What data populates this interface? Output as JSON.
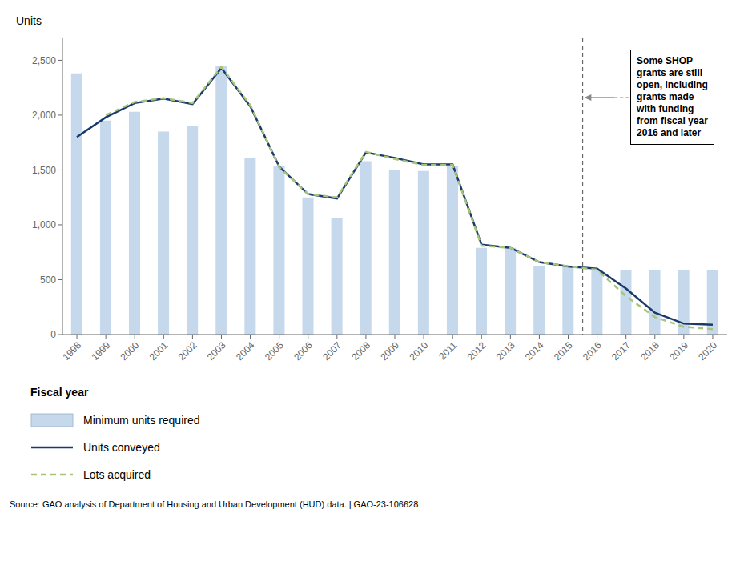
{
  "chart_data": {
    "type": "bar",
    "categories": [
      1998,
      1999,
      2000,
      2001,
      2002,
      2003,
      2004,
      2005,
      2006,
      2007,
      2008,
      2009,
      2010,
      2011,
      2012,
      2013,
      2014,
      2015,
      2016,
      2017,
      2018,
      2019,
      2020
    ],
    "series": [
      {
        "name": "Minimum units required",
        "type": "bar",
        "color": "#c5d8ec",
        "values": [
          2380,
          1950,
          2030,
          1850,
          1900,
          2450,
          1610,
          1540,
          1250,
          1060,
          1580,
          1500,
          1490,
          1540,
          790,
          790,
          620,
          620,
          590,
          590,
          590,
          590,
          590
        ]
      },
      {
        "name": "Units conveyed",
        "type": "line",
        "color": "#1a3a6b",
        "line_style": "solid",
        "values": [
          1800,
          1980,
          2110,
          2150,
          2100,
          2430,
          2080,
          1530,
          1280,
          1240,
          1660,
          1610,
          1550,
          1550,
          820,
          790,
          660,
          620,
          600,
          420,
          200,
          100,
          90
        ]
      },
      {
        "name": "Lots acquired",
        "type": "line",
        "color": "#a8c47a",
        "line_style": "dashed",
        "values": [
          null,
          2000,
          2120,
          2155,
          2110,
          2440,
          2090,
          1525,
          1280,
          1250,
          1665,
          1600,
          1545,
          1545,
          810,
          790,
          660,
          622,
          590,
          350,
          160,
          70,
          50
        ]
      }
    ],
    "xlabel": "Fiscal year",
    "ylabel": "Units",
    "ylim": [
      0,
      2700
    ],
    "yticks": [
      0,
      500,
      {
        "value": 1000,
        "label": "1,000"
      },
      {
        "value": 1500,
        "label": "1,500"
      },
      {
        "value": 2000,
        "label": "2,000"
      },
      {
        "value": 2500,
        "label": "2,500"
      }
    ],
    "grid": false,
    "legend": "bottom",
    "annotations": [
      {
        "text": "Some SHOP\ngrants are still\nopen, including\ngrants made\nwith funding\nfrom fiscal year\n2016 and later",
        "x": 2015.5
      }
    ],
    "source": "Source: GAO analysis of Department of Housing and Urban Development (HUD) data.  |  GAO-23-106628"
  }
}
